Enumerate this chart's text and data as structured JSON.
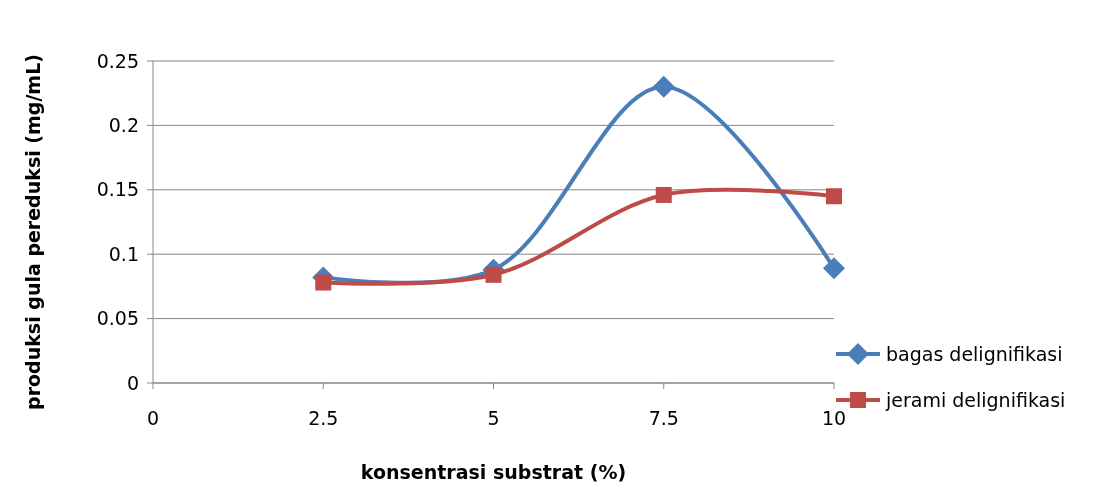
{
  "chart_data": {
    "type": "line",
    "xlabel": "konsentrasi substrat (%)",
    "ylabel": "produksi gula pereduksi (mg/mL)",
    "x": [
      2.5,
      5,
      7.5,
      10
    ],
    "series": [
      {
        "name": "bagas delignifikasi",
        "color": "#4a7ebb",
        "marker": "diamond",
        "values": [
          0.082,
          0.088,
          0.23,
          0.089
        ]
      },
      {
        "name": "jerami delignifikasi",
        "color": "#be4b48",
        "marker": "square",
        "values": [
          0.078,
          0.084,
          0.146,
          0.145
        ]
      }
    ],
    "xlim": [
      0,
      10
    ],
    "xticks": [
      0,
      2.5,
      5,
      7.5,
      10
    ],
    "ylim": [
      0,
      0.25
    ],
    "yticks": [
      0,
      0.05,
      0.1,
      0.15,
      0.2,
      0.25
    ],
    "grid": "y",
    "legend": "right",
    "line_style": "solid"
  }
}
